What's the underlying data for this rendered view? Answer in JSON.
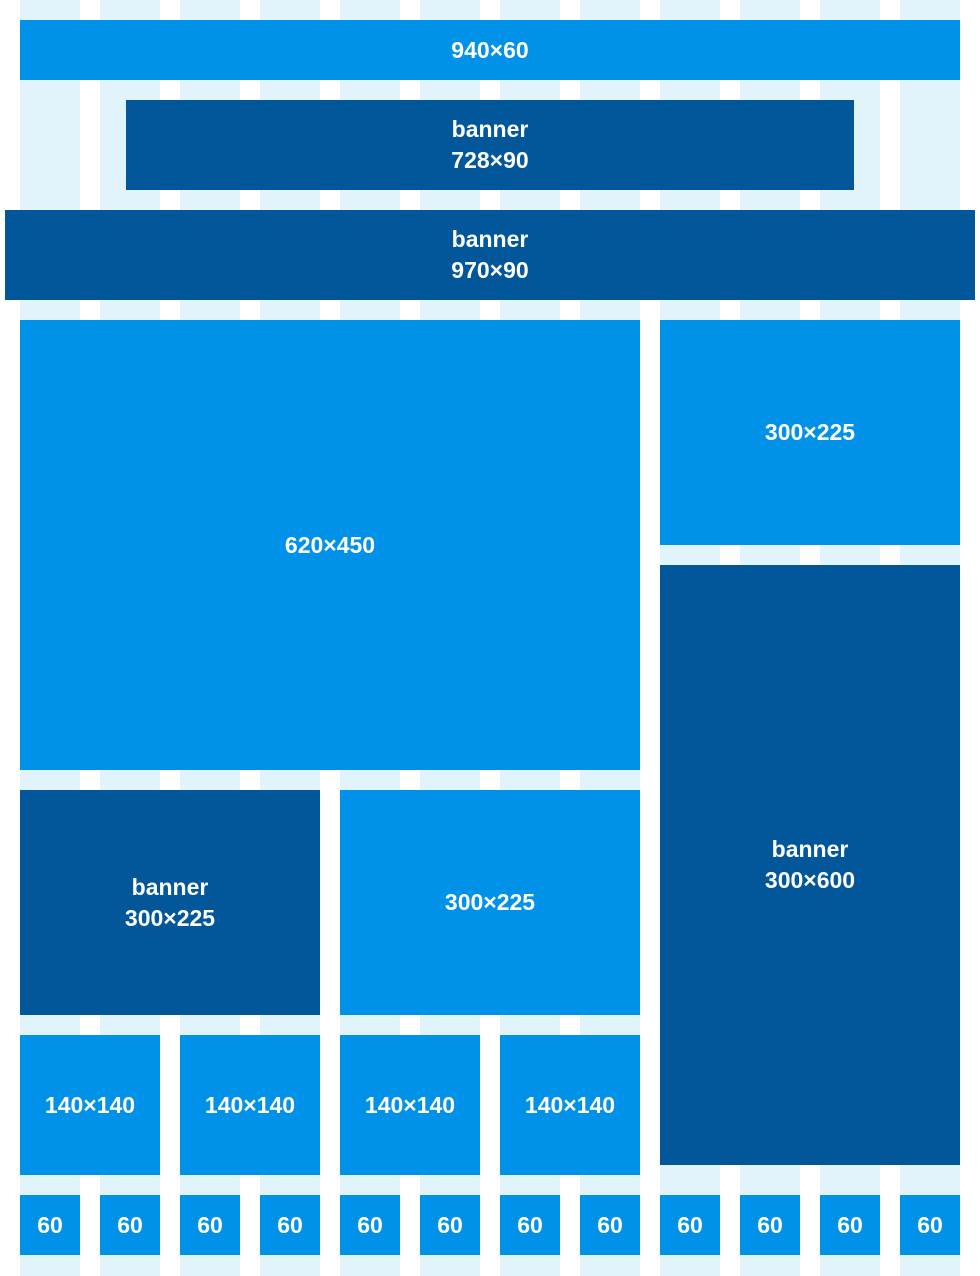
{
  "colors": {
    "guide": "#e1f4fc",
    "light_block": "#0092e8",
    "dark_banner": "#02579b",
    "text": "#ffffff"
  },
  "grid": {
    "columns": 12
  },
  "blocks": {
    "top_bar": "940×60",
    "banner_728": {
      "label": "banner",
      "size": "728×90"
    },
    "banner_970": {
      "label": "banner",
      "size": "970×90"
    },
    "main_620": "620×450",
    "side_300_top": "300×225",
    "banner_300x600": {
      "label": "banner",
      "size": "300×600"
    },
    "banner_300x225": {
      "label": "banner",
      "size": "300×225"
    },
    "mid_300": "300×225",
    "squares": [
      "140×140",
      "140×140",
      "140×140",
      "140×140"
    ],
    "cells": [
      "60",
      "60",
      "60",
      "60",
      "60",
      "60",
      "60",
      "60",
      "60",
      "60",
      "60",
      "60"
    ]
  }
}
